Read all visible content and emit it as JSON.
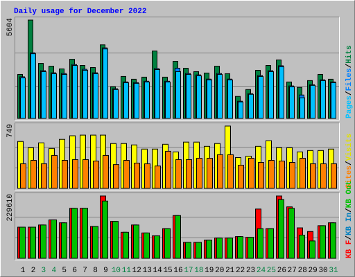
{
  "chart_data": {
    "type": "bar",
    "title": "Daily usage for December 2022",
    "categories": [
      "1",
      "2",
      "3",
      "4",
      "5",
      "6",
      "7",
      "8",
      "9",
      "10",
      "11",
      "12",
      "13",
      "14",
      "15",
      "16",
      "17",
      "18",
      "19",
      "20",
      "21",
      "22",
      "23",
      "24",
      "25",
      "26",
      "27",
      "28",
      "29",
      "30",
      "31"
    ],
    "weekend": [
      2,
      3,
      9,
      10,
      16,
      17,
      23,
      24,
      30
    ],
    "weekend_color": "#008040",
    "weekday_color": "#000000",
    "legend_separator": "/",
    "panels": [
      {
        "ylim": [
          0,
          5604
        ],
        "gridlines": [
          1868,
          3736
        ],
        "legend": [
          {
            "name": "Pages",
            "color": "#00c0ff"
          },
          {
            "name": "Files",
            "color": "#0080ff"
          },
          {
            "name": "Hits",
            "color": "#008040"
          }
        ],
        "series": [
          {
            "color": "#008040",
            "values": [
              2508,
              5604,
              3135,
              2979,
              2822,
              3370,
              3018,
              2900,
              4193,
              1803,
              2391,
              2234,
              2352,
              3841,
              2352,
              3253,
              2861,
              2665,
              2587,
              2979,
              2547,
              1254,
              1646,
              2743,
              3018,
              3331,
              2077,
              1764,
              2156,
              2508,
              2234
            ]
          },
          {
            "color": "#0080ff",
            "values": [
              2370,
              3740,
              2720,
              2600,
              2560,
              3070,
              2800,
              2600,
              4020,
              1690,
              2080,
              2040,
              2120,
              2840,
              2120,
              2862,
              2560,
              2480,
              2240,
              2560,
              2240,
              980,
              1410,
              2440,
              2720,
              3000,
              1850,
              1333,
              1920,
              2200,
              2080
            ]
          },
          {
            "color": "#00c0ff",
            "values": [
              2313,
              3685,
              2666,
              2548,
              2509,
              3018,
              2744,
              2548,
              3959,
              1646,
              2038,
              1999,
              2078,
              2783,
              2078,
              2666,
              2509,
              2430,
              2195,
              2509,
              2195,
              941,
              1372,
              2391,
              2666,
              2940,
              1803,
              1176,
              1882,
              2156,
              2038
            ]
          }
        ]
      },
      {
        "ylim": [
          0,
          749
        ],
        "gridlines": [
          250,
          499
        ],
        "legend": [
          {
            "name": "Sites",
            "color": "#ff8000"
          },
          {
            "name": "Visits",
            "color": "#e0e000"
          }
        ],
        "series": [
          {
            "color": "#ffff00",
            "values": [
              564,
              488,
              547,
              480,
              589,
              632,
              640,
              640,
              640,
              539,
              539,
              522,
              472,
              472,
              530,
              438,
              556,
              556,
              505,
              539,
              749,
              370,
              387,
              505,
              573,
              488,
              488,
              438,
              455,
              455,
              472
            ]
          },
          {
            "color": "#ff8000",
            "values": [
              295,
              337,
              295,
              396,
              337,
              345,
              345,
              328,
              396,
              286,
              337,
              303,
              295,
              269,
              446,
              345,
              345,
              362,
              362,
              404,
              404,
              278,
              362,
              312,
              337,
              328,
              312,
              362,
              295,
              295,
              295
            ]
          }
        ]
      },
      {
        "ylim": [
          0,
          229610
        ],
        "gridlines": [
          76537,
          153073
        ],
        "legend": [
          {
            "name": "KB F",
            "color": "#ff0000"
          },
          {
            "name": "KB In",
            "color": "#0080c0"
          },
          {
            "name": "KB Out",
            "color": "#00c000"
          }
        ],
        "series": [
          {
            "color": "#ff0000",
            "values": [
              114810,
              114810,
              122820,
              141510,
              130830,
              184230,
              184230,
              117480,
              229610,
              136170,
              96120,
              122820,
              93450,
              82770,
              109470,
              157530,
              58740,
              58740,
              66750,
              74760,
              74760,
              80100,
              77430,
              181560,
              109470,
              229610,
              189570,
              112140,
              98790,
              120150,
              130830
            ]
          },
          {
            "color": "#00c000",
            "values": [
              114810,
              114810,
              122820,
              141510,
              130830,
              184230,
              184230,
              117480,
              210930,
              136170,
              96120,
              122820,
              93450,
              82770,
              109470,
              157530,
              58740,
              58740,
              66750,
              74760,
              74760,
              80100,
              77430,
              109470,
              109470,
              216270,
              184230,
              85440,
              64080,
              120150,
              130830
            ]
          }
        ]
      }
    ]
  }
}
